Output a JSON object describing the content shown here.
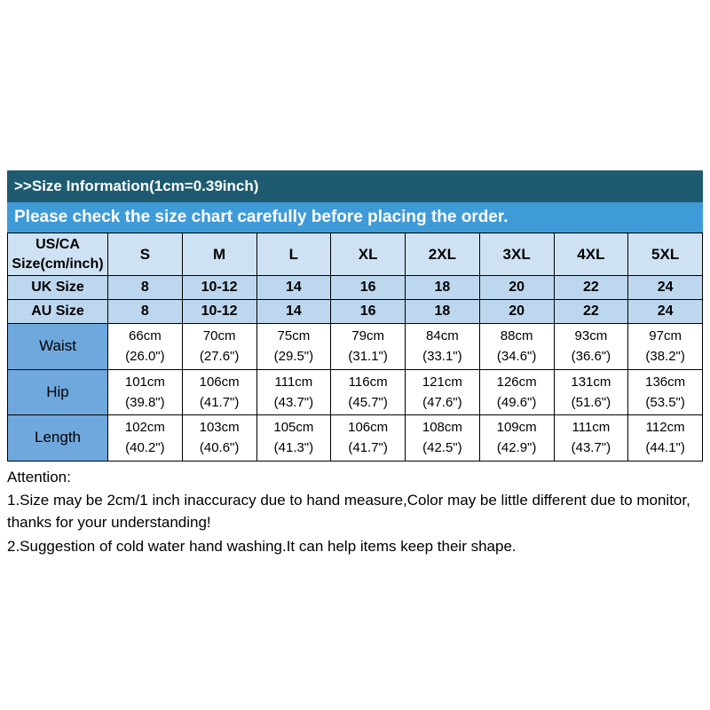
{
  "header": {
    "size_info_title": ">>Size Information(1cm=0.39inch)",
    "check_notice": "Please check the size chart carefully before placing the order."
  },
  "table": {
    "corner_label": "US/CA\nSize(cm/inch)",
    "size_columns": [
      "S",
      "M",
      "L",
      "XL",
      "2XL",
      "3XL",
      "4XL",
      "5XL"
    ],
    "uk_row": {
      "label": "UK Size",
      "values": [
        "8",
        "10-12",
        "14",
        "16",
        "18",
        "20",
        "22",
        "24"
      ]
    },
    "au_row": {
      "label": "AU Size",
      "values": [
        "8",
        "10-12",
        "14",
        "16",
        "18",
        "20",
        "22",
        "24"
      ]
    },
    "measure_rows": [
      {
        "label": "Waist",
        "values": [
          "66cm\n(26.0\")",
          "70cm\n(27.6\")",
          "75cm\n(29.5\")",
          "79cm\n(31.1\")",
          "84cm\n(33.1\")",
          "88cm\n(34.6\")",
          "93cm\n(36.6\")",
          "97cm\n(38.2\")"
        ]
      },
      {
        "label": "Hip",
        "values": [
          "101cm\n(39.8\")",
          "106cm\n(41.7\")",
          "111cm\n(43.7\")",
          "116cm\n(45.7\")",
          "121cm\n(47.6\")",
          "126cm\n(49.6\")",
          "131cm\n(51.6\")",
          "136cm\n(53.5\")"
        ]
      },
      {
        "label": "Length",
        "values": [
          "102cm\n(40.2\")",
          "103cm\n(40.6\")",
          "105cm\n(41.3\")",
          "106cm\n(41.7\")",
          "108cm\n(42.5\")",
          "109cm\n(42.9\")",
          "111cm\n(43.7\")",
          "112cm\n(44.1\")"
        ]
      }
    ]
  },
  "attention": {
    "title": "Attention:",
    "lines": [
      "1.Size may be 2cm/1 inch inaccuracy due to hand measure,Color may be little different due to monitor, thanks for your understanding!",
      "2.Suggestion of cold water hand washing.It can help items keep their shape."
    ]
  },
  "colors": {
    "dark_bar": "#1e5b70",
    "blue_bar": "#3f9ad8",
    "header_cell": "#cfe2f3",
    "size_row_cell": "#bdd7ee",
    "label_cell": "#6fa8dc"
  }
}
